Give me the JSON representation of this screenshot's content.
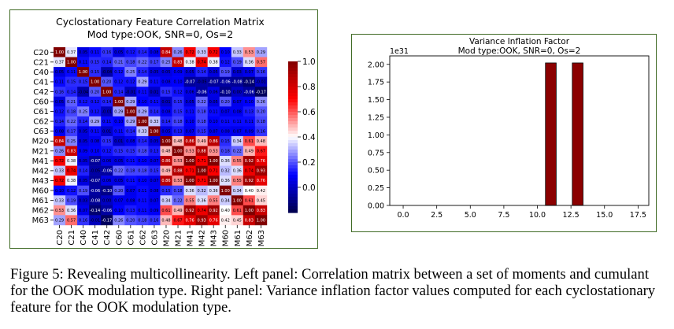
{
  "figure": {
    "caption": "Figure 5: Revealing multicollinearity. Left panel: Correlation matrix between a set of moments and cumulant for the OOK modulation type. Right panel: Variance inflation factor values computed for each cyclostationary feature for the OOK modulation type."
  },
  "chart_data": [
    {
      "type": "heatmap",
      "title": "Cyclostationary Feature Correlation Matrix",
      "subtitle": "Mod type:OOK, SNR=0, Os=2",
      "labels": [
        "C20",
        "C21",
        "C40",
        "C41",
        "C42",
        "C60",
        "C61",
        "C62",
        "C63",
        "M20",
        "M21",
        "M41",
        "M42",
        "M43",
        "M60",
        "M61",
        "M62",
        "M63"
      ],
      "colorbar": {
        "ticks": [
          "1.0",
          "0.8",
          "0.6",
          "0.4",
          "0.2",
          "0.0"
        ],
        "range": [
          -0.2,
          1.0
        ],
        "colormap": "seismic"
      },
      "colors": {
        "low": "#00004c",
        "mid": "#ffffff",
        "high": "#800000"
      },
      "matrix": [
        [
          "1.00",
          "0.37",
          "0.05",
          "0.11",
          "0.16",
          "0.05",
          "0.12",
          "0.14",
          "0.08",
          "0.84",
          "0.26",
          "0.72",
          "0.33",
          "0.72",
          "0.10",
          "0.33",
          "0.53",
          "0.29"
        ],
        [
          "0.37",
          "1.00",
          "0.11",
          "0.15",
          "0.14",
          "0.21",
          "0.18",
          "0.22",
          "0.17",
          "0.25",
          "0.83",
          "0.38",
          "0.74",
          "0.38",
          "0.12",
          "0.19",
          "0.36",
          "0.57"
        ],
        [
          "0.05",
          "0.11",
          "1.00",
          "0.15",
          "-0.04",
          "0.12",
          "0.25",
          "0.14",
          "0.05",
          "0.05",
          "0.09",
          "0.05",
          "0.14",
          "0.05",
          "0.19",
          "0.03",
          "0.07",
          "0.16"
        ],
        [
          "0.11",
          "0.15",
          "0.15",
          "1.00",
          "0.20",
          "0.12",
          "0.12",
          "0.29",
          "0.11",
          "0.08",
          "0.10",
          "-0.07",
          "-0.05",
          "-0.07",
          "-0.06",
          "-0.08",
          "-0.14",
          "-0.01"
        ],
        [
          "0.16",
          "0.14",
          "-0.04",
          "0.20",
          "1.00",
          "0.14",
          "-0.01",
          "0.11",
          "0.01",
          "0.15",
          "0.12",
          "0.06",
          "-0.06",
          "0.06",
          "-0.10",
          "0.00",
          "-0.06",
          "-0.17"
        ],
        [
          "0.05",
          "0.21",
          "0.12",
          "0.12",
          "0.14",
          "1.00",
          "0.29",
          "0.10",
          "0.11",
          "0.01",
          "0.15",
          "0.05",
          "0.22",
          "0.05",
          "0.20",
          "0.07",
          "0.10",
          "0.26"
        ],
        [
          "0.12",
          "0.18",
          "0.25",
          "0.12",
          "-0.01",
          "0.29",
          "1.00",
          "0.29",
          "0.14",
          "0.08",
          "0.15",
          "0.11",
          "0.18",
          "0.11",
          "0.07",
          "0.08",
          "0.13",
          "0.20"
        ],
        [
          "0.14",
          "0.22",
          "0.14",
          "0.29",
          "0.11",
          "0.10",
          "0.29",
          "1.00",
          "0.33",
          "0.14",
          "0.18",
          "0.10",
          "0.18",
          "0.10",
          "0.11",
          "0.11",
          "0.11",
          "0.18"
        ],
        [
          "0.08",
          "0.17",
          "0.05",
          "0.11",
          "0.01",
          "0.11",
          "0.14",
          "0.33",
          "1.00",
          "0.05",
          "0.13",
          "0.07",
          "0.15",
          "0.07",
          "0.08",
          "0.07",
          "0.09",
          "0.16"
        ],
        [
          "0.84",
          "0.25",
          "0.05",
          "0.08",
          "0.15",
          "0.01",
          "0.08",
          "0.14",
          "0.05",
          "1.00",
          "0.48",
          "0.86",
          "0.49",
          "0.86",
          "0.15",
          "0.34",
          "0.61",
          "0.48"
        ],
        [
          "0.26",
          "0.83",
          "0.09",
          "0.10",
          "0.12",
          "0.15",
          "0.15",
          "0.18",
          "0.13",
          "0.48",
          "1.00",
          "0.53",
          "0.88",
          "0.53",
          "0.18",
          "0.22",
          "0.49",
          "0.67"
        ],
        [
          "0.72",
          "0.38",
          "0.05",
          "-0.07",
          "0.06",
          "0.05",
          "0.11",
          "0.10",
          "0.07",
          "0.86",
          "0.53",
          "1.00",
          "0.71",
          "1.00",
          "0.36",
          "0.55",
          "0.92",
          "0.76"
        ],
        [
          "0.33",
          "0.74",
          "0.14",
          "-0.05",
          "-0.06",
          "0.22",
          "0.18",
          "0.18",
          "0.15",
          "0.49",
          "0.88",
          "0.71",
          "1.00",
          "0.71",
          "0.32",
          "0.36",
          "0.74",
          "0.93"
        ],
        [
          "0.72",
          "0.38",
          "0.05",
          "-0.07",
          "0.06",
          "0.05",
          "0.11",
          "0.10",
          "0.07",
          "0.86",
          "0.53",
          "1.00",
          "0.71",
          "1.00",
          "0.36",
          "0.55",
          "0.92",
          "0.76"
        ],
        [
          "0.10",
          "0.12",
          "0.19",
          "-0.06",
          "-0.10",
          "0.20",
          "0.07",
          "0.11",
          "0.08",
          "0.15",
          "0.18",
          "0.36",
          "0.32",
          "0.36",
          "1.00",
          "0.34",
          "0.40",
          "0.42"
        ],
        [
          "0.33",
          "0.19",
          "0.03",
          "-0.08",
          "0.00",
          "0.07",
          "0.08",
          "0.11",
          "0.07",
          "0.34",
          "0.22",
          "0.55",
          "0.36",
          "0.55",
          "0.34",
          "1.00",
          "0.61",
          "0.45"
        ],
        [
          "0.53",
          "0.36",
          "0.07",
          "-0.14",
          "-0.06",
          "0.10",
          "0.13",
          "0.11",
          "0.09",
          "0.61",
          "0.49",
          "0.92",
          "0.74",
          "0.92",
          "0.40",
          "0.61",
          "1.00",
          "0.83"
        ],
        [
          "0.29",
          "0.57",
          "0.16",
          "-0.01",
          "-0.17",
          "0.26",
          "0.20",
          "0.18",
          "0.16",
          "0.48",
          "0.67",
          "0.76",
          "0.93",
          "0.76",
          "0.42",
          "0.45",
          "0.83",
          "1.00"
        ]
      ]
    },
    {
      "type": "bar",
      "title": "Variance Inflation Factor",
      "subtitle": "Mod type:OOK, SNR=0, Os=2",
      "offset_text": "1e31",
      "x": [
        0,
        1,
        2,
        3,
        4,
        5,
        6,
        7,
        8,
        9,
        10,
        11,
        12,
        13,
        14,
        15,
        16,
        17
      ],
      "values": [
        0,
        0,
        0,
        0,
        0,
        0,
        0,
        0,
        0,
        0,
        0,
        2.02,
        0,
        2.02,
        0,
        0,
        0,
        0
      ],
      "xlim": [
        -1.0,
        18.3
      ],
      "ylim": [
        0,
        2.12
      ],
      "xticks": [
        "0.0",
        "2.5",
        "5.0",
        "7.5",
        "10.0",
        "12.5",
        "15.0",
        "17.5"
      ],
      "yticks": [
        "0.00",
        "0.25",
        "0.50",
        "0.75",
        "1.00",
        "1.25",
        "1.50",
        "1.75",
        "2.00"
      ],
      "colors": {
        "bar_fill": "#8b0000",
        "bar_edge": "#000000"
      }
    }
  ]
}
